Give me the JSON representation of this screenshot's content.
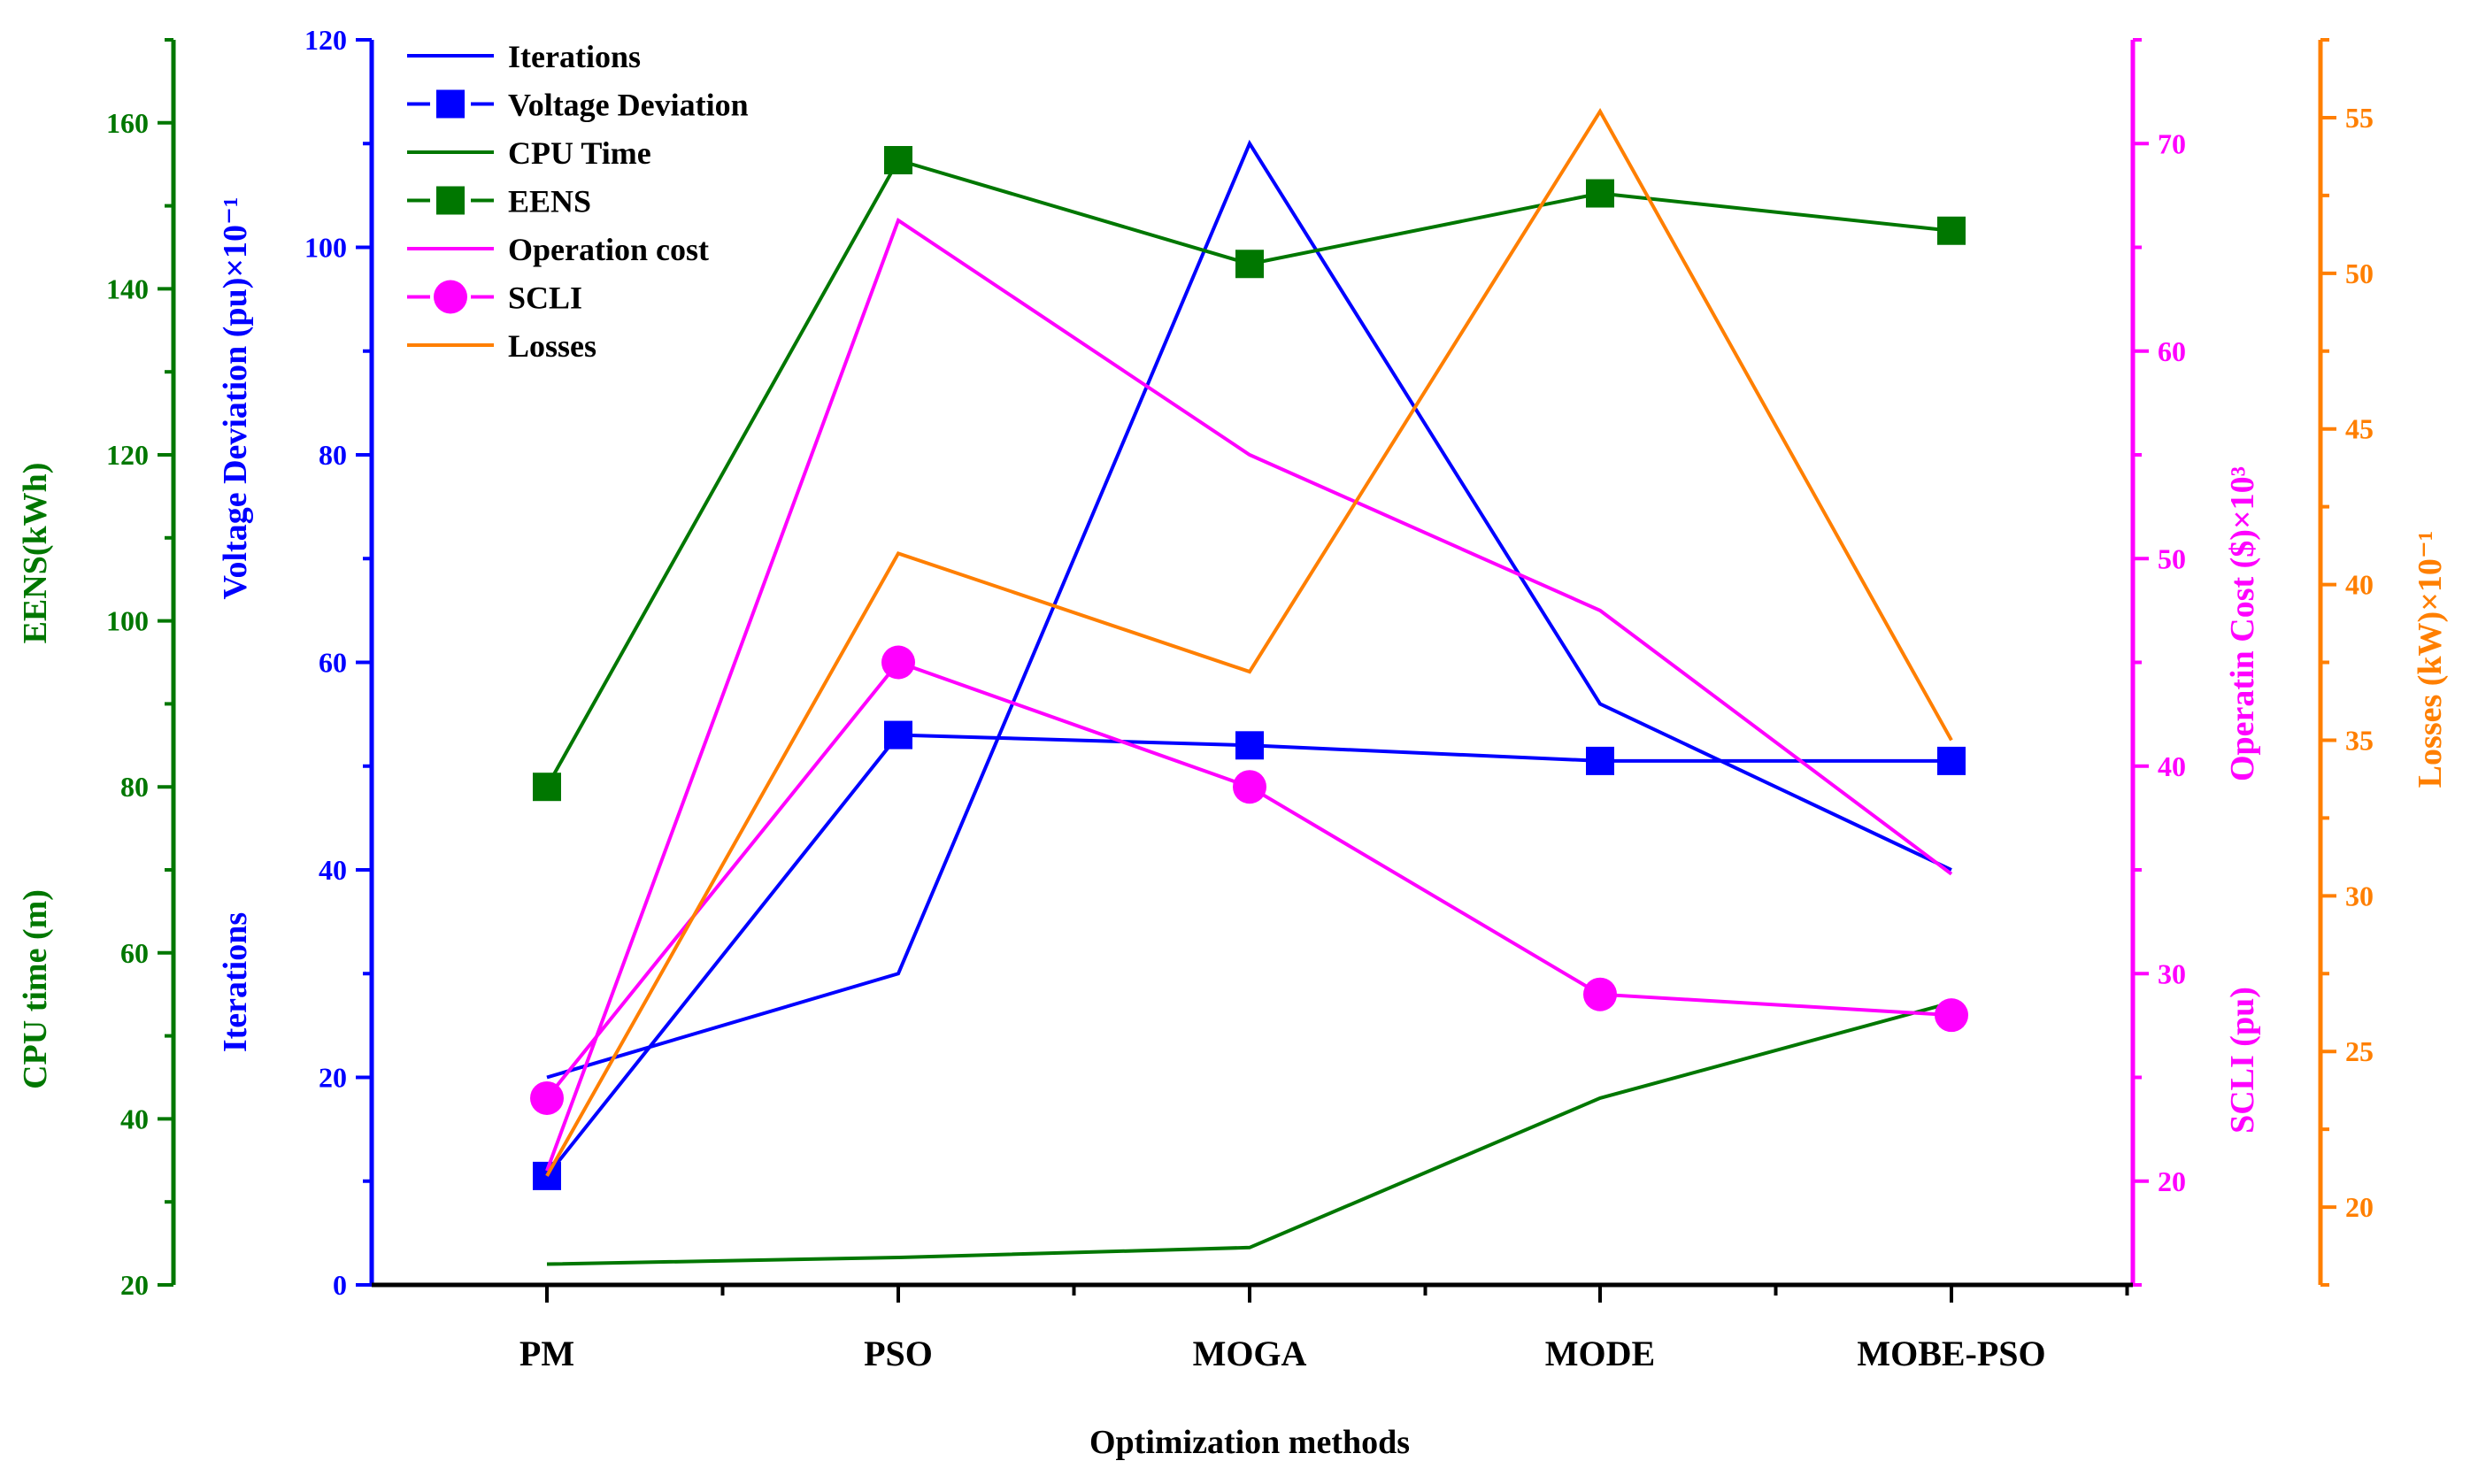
{
  "chart_data": {
    "type": "line",
    "categories": [
      "PM",
      "PSO",
      "MOGA",
      "MODE",
      "MOBE-PSO"
    ],
    "xlabel": "Optimization methods",
    "series": [
      {
        "name": "Iterations",
        "axis": "left_blue",
        "style": "line",
        "color": "#0000ff",
        "values": [
          20,
          30,
          110,
          56,
          40
        ]
      },
      {
        "name": "Voltage Deviation",
        "axis": "left_blue",
        "style": "line-square",
        "color": "#0000ff",
        "values": [
          10.5,
          53,
          52,
          50.5,
          50.5
        ]
      },
      {
        "name": "CPU Time",
        "axis": "left_green",
        "style": "line",
        "color": "#007700",
        "values": [
          22.5,
          23.3,
          24.5,
          42.5,
          54
        ]
      },
      {
        "name": "EENS",
        "axis": "left_green",
        "style": "line-square",
        "color": "#007700",
        "values": [
          80,
          155.5,
          143,
          151.5,
          147
        ]
      },
      {
        "name": "Operation cost",
        "axis": "right_magenta",
        "style": "line",
        "color": "#ff00ff",
        "values": [
          20.5,
          66.3,
          55,
          47.5,
          34.8
        ]
      },
      {
        "name": "SCLI",
        "axis": "right_magenta",
        "style": "line-circle",
        "color": "#ff00ff",
        "values": [
          24,
          45,
          39,
          29,
          28
        ]
      },
      {
        "name": "Losses",
        "axis": "right_orange",
        "style": "line",
        "color": "#ff7f00",
        "values": [
          21,
          41,
          37.2,
          55.2,
          35
        ]
      }
    ],
    "axes": {
      "left_green": {
        "color": "#007700",
        "label_top": "EENS(kWh)",
        "label_bottom": "CPU time (m)",
        "range": [
          20,
          170
        ],
        "ticks": [
          "20",
          "40",
          "60",
          "80",
          "100",
          "120",
          "140",
          "160"
        ]
      },
      "left_blue": {
        "color": "#0000ff",
        "label_top": "Voltage Deviation (pu)×10⁻¹",
        "label_bottom": "Iterations",
        "range": [
          0,
          120
        ],
        "ticks": [
          "0",
          "20",
          "40",
          "60",
          "80",
          "100",
          "120"
        ]
      },
      "right_magenta": {
        "color": "#ff00ff",
        "label_top": "Operatin Cost ($)×10³",
        "label_bottom": "SCLI (pu)",
        "range": [
          15,
          75
        ],
        "ticks": [
          "20",
          "30",
          "40",
          "50",
          "60",
          "70"
        ]
      },
      "right_orange": {
        "color": "#ff7f00",
        "label": "Losses (kW)×10⁻¹",
        "range": [
          17.5,
          57.5
        ],
        "ticks": [
          "20",
          "25",
          "30",
          "35",
          "40",
          "45",
          "50",
          "55"
        ]
      }
    },
    "legend": {
      "placement": "top-left",
      "entries": [
        "Iterations",
        "Voltage Deviation",
        "CPU Time",
        "EENS",
        "Operation cost",
        "SCLI",
        "Losses"
      ]
    },
    "grid": false
  }
}
